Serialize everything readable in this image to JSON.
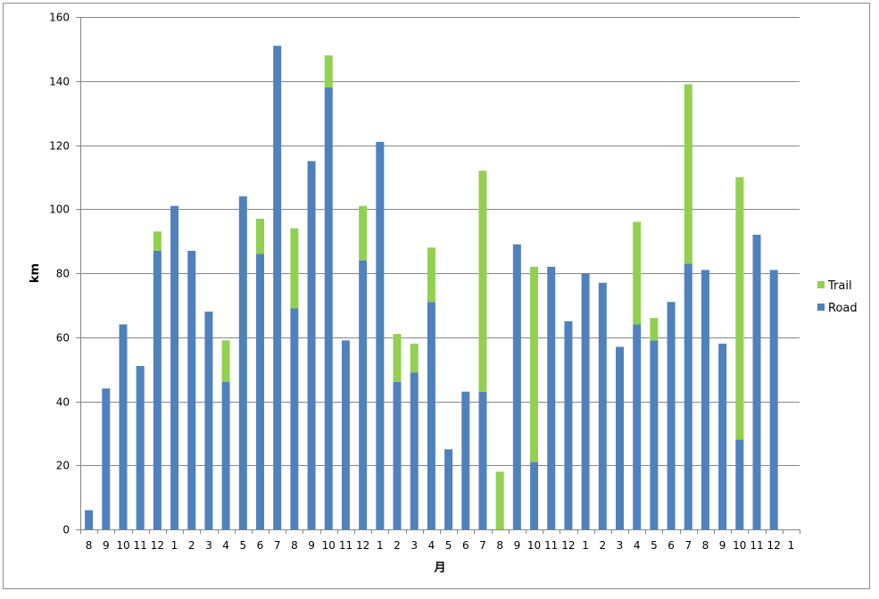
{
  "chart_data": {
    "type": "bar",
    "stacked": true,
    "xlabel": "月",
    "ylabel": "km",
    "ylim": [
      0,
      160
    ],
    "yticks": [
      0,
      20,
      40,
      60,
      80,
      100,
      120,
      140,
      160
    ],
    "grid": true,
    "legend_position": "right",
    "categories": [
      "8",
      "9",
      "10",
      "11",
      "12",
      "1",
      "2",
      "3",
      "4",
      "5",
      "6",
      "7",
      "8",
      "9",
      "10",
      "11",
      "12",
      "1",
      "2",
      "3",
      "4",
      "5",
      "6",
      "7",
      "8",
      "9",
      "10",
      "11",
      "12",
      "1",
      "2",
      "3",
      "4",
      "5",
      "6",
      "7",
      "8",
      "9",
      "10",
      "11",
      "12",
      "1"
    ],
    "series": [
      {
        "name": "Road",
        "color": "#4f81bd",
        "values": [
          6,
          44,
          64,
          51,
          87,
          101,
          87,
          68,
          46,
          104,
          86,
          151,
          69,
          115,
          138,
          59,
          84,
          121,
          46,
          49,
          71,
          25,
          43,
          43,
          0,
          89,
          21,
          82,
          65,
          80,
          77,
          57,
          64,
          59,
          71,
          83,
          81,
          58,
          28,
          92,
          81,
          0
        ]
      },
      {
        "name": "Trail",
        "color": "#92d050",
        "values": [
          0,
          0,
          0,
          0,
          6,
          0,
          0,
          0,
          13,
          0,
          11,
          0,
          25,
          0,
          10,
          0,
          17,
          0,
          15,
          9,
          17,
          0,
          0,
          69,
          18,
          0,
          61,
          0,
          0,
          0,
          0,
          0,
          32,
          7,
          0,
          56,
          0,
          0,
          82,
          0,
          0,
          0
        ]
      }
    ]
  }
}
